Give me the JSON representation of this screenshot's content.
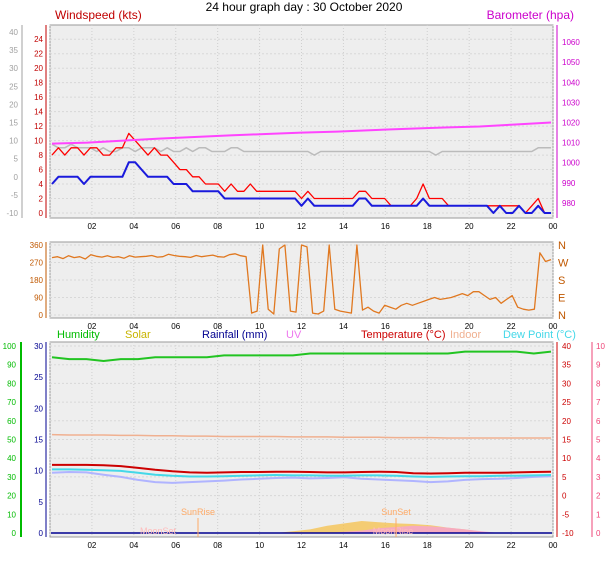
{
  "title": "24 hour graph day : 30 October 2020",
  "colors": {
    "wind_avg": "#1a1adc",
    "wind_gust": "#ff0000",
    "wind_left_axis": "#c00000",
    "gray_axis": "#a0a0a0",
    "baro": "#ff44ff",
    "baro_axis": "#cc00cc",
    "direction": "#e07820",
    "direction_axis": "#c05800",
    "humidity": "#22c422",
    "humidity_axis": "#00bb00",
    "solar": "#c8b400",
    "rainfall": "#000090",
    "uv": "#ee77ee",
    "temperature": "#cc0000",
    "indoor": "#f0b090",
    "dewpoint": "#44d8e8",
    "feels": "#b0b4ff",
    "temp_axis": "#ee4477",
    "sun_text": "#ffaa66",
    "moon_text": "#ffbbbb",
    "plot_bg": "#eeeeee"
  },
  "chart_data": [
    {
      "type": "line",
      "x_tick_labels": [
        "02",
        "04",
        "06",
        "08",
        "10",
        "12",
        "14",
        "16",
        "18",
        "20",
        "22",
        "00"
      ],
      "left_axis_title": "Windspeed (kts)",
      "right_axis_title": "Barometer (hpa)",
      "left_ticks": [
        "0",
        "2",
        "4",
        "6",
        "8",
        "10",
        "12",
        "14",
        "16",
        "18",
        "20",
        "22",
        "24"
      ],
      "gray_ticks": [
        "-10",
        "-5",
        "0",
        "5",
        "10",
        "15",
        "20",
        "25",
        "30",
        "35",
        "40"
      ],
      "right_ticks": [
        "980",
        "990",
        "1000",
        "1010",
        "1020",
        "1030",
        "1040",
        "1050",
        "1060"
      ],
      "left_ylim": [
        0,
        25
      ],
      "baro_ylim": [
        975,
        1065
      ],
      "series": [
        {
          "role": "gust",
          "values": [
            8,
            9,
            8,
            9,
            9,
            8,
            9,
            9,
            8,
            8,
            9,
            9,
            11,
            10,
            9,
            8,
            9,
            8,
            8,
            7,
            6,
            6,
            5,
            5,
            4,
            4,
            4,
            3,
            4,
            3,
            3,
            4,
            3,
            3,
            3,
            3,
            3,
            3,
            3,
            2,
            3,
            2,
            2,
            2,
            2,
            2,
            2,
            2,
            3,
            3,
            2,
            2,
            2,
            1,
            1,
            1,
            1,
            2,
            4,
            2,
            2,
            2,
            1,
            1,
            1,
            1,
            1,
            1,
            1,
            1,
            1,
            1,
            1,
            1,
            0,
            1,
            2,
            0,
            0
          ]
        },
        {
          "role": "average",
          "values": [
            4,
            5,
            5,
            5,
            5,
            4,
            5,
            5,
            5,
            5,
            5,
            5,
            7,
            7,
            6,
            5,
            5,
            5,
            5,
            4,
            4,
            4,
            3,
            3,
            3,
            3,
            3,
            2,
            2,
            2,
            2,
            2,
            2,
            2,
            2,
            2,
            2,
            2,
            2,
            1,
            2,
            1,
            1,
            1,
            1,
            1,
            1,
            1,
            2,
            2,
            1,
            1,
            1,
            1,
            1,
            1,
            1,
            1,
            2,
            1,
            1,
            1,
            1,
            1,
            1,
            1,
            1,
            1,
            1,
            0,
            1,
            0,
            0,
            1,
            0,
            0,
            1,
            0,
            0
          ]
        },
        {
          "role": "gray",
          "values": [
            9,
            8,
            8,
            9,
            8,
            8,
            8,
            7,
            8,
            7,
            7,
            8,
            8,
            7,
            8,
            8,
            8,
            7,
            8,
            7,
            7,
            8,
            7,
            8,
            8,
            7,
            7,
            7,
            8,
            8,
            7,
            7,
            7,
            7,
            7,
            7,
            7,
            7,
            7,
            7,
            7,
            6,
            7,
            7,
            7,
            7,
            7,
            7,
            7,
            7,
            7,
            7,
            7,
            7,
            7,
            7,
            7,
            7,
            7,
            7,
            6,
            7,
            7,
            7,
            7,
            7,
            7,
            7,
            7,
            7,
            7,
            7,
            7,
            7,
            7,
            7,
            8,
            8,
            8
          ]
        },
        {
          "role": "barometer",
          "values": [
            1009.5,
            1010,
            1011,
            1012,
            1012.8,
            1013.6,
            1014.3,
            1015,
            1015.5,
            1016.2,
            1016.9,
            1017.5,
            1018,
            1019,
            1020
          ]
        }
      ]
    },
    {
      "type": "line",
      "x_tick_labels": [
        "02",
        "04",
        "06",
        "08",
        "10",
        "12",
        "14",
        "16",
        "18",
        "20",
        "22",
        "00"
      ],
      "left_ticks": [
        "0",
        "90",
        "180",
        "270",
        "360"
      ],
      "right_labels": [
        "N",
        "W",
        "S",
        "E",
        "N"
      ],
      "ylim": [
        0,
        360
      ],
      "series": [
        {
          "role": "direction",
          "values": [
            295,
            300,
            290,
            305,
            295,
            300,
            288,
            310,
            302,
            298,
            305,
            296,
            300,
            292,
            305,
            298,
            300,
            302,
            306,
            298,
            300,
            312,
            306,
            302,
            300,
            296,
            306,
            300,
            304,
            308,
            300,
            298,
            310,
            315,
            305,
            300,
            10,
            20,
            360,
            30,
            5,
            340,
            360,
            20,
            15,
            360,
            350,
            10,
            5,
            20,
            360,
            30,
            20,
            15,
            10,
            360,
            25,
            40,
            20,
            10,
            50,
            40,
            30,
            50,
            60,
            50,
            60,
            70,
            80,
            90,
            80,
            85,
            90,
            100,
            110,
            100,
            120,
            120,
            100,
            80,
            90,
            60,
            80,
            100,
            40,
            30,
            25,
            30,
            320,
            275,
            285
          ]
        }
      ]
    },
    {
      "type": "line",
      "x_tick_labels": [
        "02",
        "04",
        "06",
        "08",
        "10",
        "12",
        "14",
        "16",
        "18",
        "20",
        "22",
        "00"
      ],
      "series_labels": [
        "Humidity",
        "Solar",
        "Rainfall (mm)",
        "UV",
        "Temperature (°C)",
        "Indoor",
        "Dew Point (°C)"
      ],
      "left_ticks": [
        "0",
        "10",
        "20",
        "30",
        "40",
        "50",
        "60",
        "70",
        "80",
        "90",
        "100"
      ],
      "second_ticks": [
        "0",
        "5",
        "10",
        "15",
        "20",
        "25",
        "30"
      ],
      "temp_ticks": [
        "-10",
        "-5",
        "0",
        "5",
        "10",
        "15",
        "20",
        "25",
        "30",
        "35",
        "40"
      ],
      "uv_ticks": [
        "0",
        "1",
        "2",
        "3",
        "4",
        "5",
        "6",
        "7",
        "8",
        "9",
        "10"
      ],
      "temp_ylim": [
        -10,
        40
      ],
      "annotations": [
        {
          "text": "SunRise"
        },
        {
          "text": "SunSet"
        },
        {
          "text": "MoonSet"
        },
        {
          "text": "MoonRise"
        }
      ],
      "series": [
        {
          "role": "humidity",
          "values": [
            94,
            93,
            93,
            92,
            93,
            93,
            94,
            94,
            94,
            94,
            95,
            95,
            95,
            95,
            95,
            96,
            96,
            96,
            96,
            96,
            96,
            96,
            96,
            96,
            97,
            97,
            97,
            97,
            96,
            97
          ]
        },
        {
          "role": "indoor",
          "values": [
            16.3,
            16.2,
            16.2,
            16.2,
            16.1,
            16.1,
            16.0,
            16.0,
            15.9,
            15.9,
            15.8,
            15.8,
            15.8,
            15.8,
            15.7,
            15.7,
            15.7,
            15.6,
            15.6,
            15.6,
            15.5,
            15.5,
            15.5,
            15.4,
            15.4,
            15.4,
            15.4,
            15.4,
            15.4,
            15.4
          ]
        },
        {
          "role": "temperature",
          "values": [
            8.2,
            8.2,
            8.2,
            8.1,
            7.9,
            7.4,
            6.9,
            6.5,
            6.2,
            6.1,
            6.2,
            6.3,
            6.3,
            6.4,
            6.4,
            6.3,
            6.2,
            6.2,
            6.3,
            6.4,
            6.3,
            6.0,
            5.9,
            6.0,
            6.1,
            6.1,
            6.1,
            6.2,
            6.3,
            6.4
          ]
        },
        {
          "role": "dewpoint",
          "values": [
            7.0,
            7.0,
            6.9,
            6.8,
            6.6,
            6.1,
            5.6,
            5.3,
            5.1,
            5.1,
            5.2,
            5.3,
            5.4,
            5.5,
            5.4,
            5.4,
            5.3,
            5.3,
            5.4,
            5.4,
            5.3,
            5.1,
            5.0,
            5.1,
            5.2,
            5.2,
            5.3,
            5.3,
            5.4,
            5.5
          ]
        },
        {
          "role": "feels",
          "values": [
            6.1,
            6.3,
            6.2,
            5.6,
            5.0,
            4.2,
            3.6,
            3.4,
            3.6,
            3.8,
            4.0,
            4.3,
            4.5,
            4.7,
            4.8,
            4.6,
            4.7,
            4.9,
            4.5,
            4.3,
            4.1,
            3.9,
            3.6,
            3.8,
            4.2,
            4.4,
            4.5,
            4.7,
            5.0,
            5.2
          ]
        },
        {
          "role": "solar",
          "values": [
            0,
            0,
            0,
            0,
            0,
            0,
            0,
            0,
            0,
            0,
            0,
            0,
            0,
            0,
            0.3,
            0.6,
            1.2,
            1.6,
            2.0,
            1.8,
            1.6,
            1.5,
            1.3,
            0.9,
            0.6,
            0.2,
            0,
            0,
            0,
            0
          ]
        },
        {
          "role": "uv",
          "values": [
            0,
            0,
            0,
            0,
            0,
            0,
            0,
            0,
            0,
            0,
            0,
            0,
            0,
            0,
            0,
            0,
            0,
            0.2,
            0.4,
            0.8,
            1.0,
            1.2,
            1.1,
            0.9,
            0.6,
            0.3,
            0,
            0,
            0,
            0
          ]
        }
      ]
    }
  ]
}
